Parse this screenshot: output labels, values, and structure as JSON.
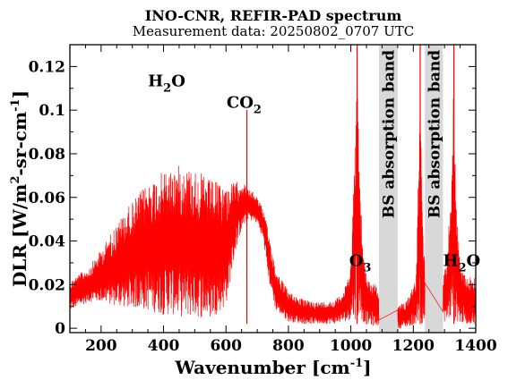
{
  "chart_data": {
    "type": "line",
    "title": "INO-CNR, REFIR-PAD spectrum",
    "subtitle": "Measurement data: 20250802_0707 UTC",
    "xlabel": {
      "base": "Wavenumber [cm",
      "sup": "-1",
      "end": "]"
    },
    "ylabel": {
      "a": "DLR [W/m",
      "sup1": "2",
      "b": "-sr-cm",
      "sup2": "-1",
      "c": "]"
    },
    "xlim": [
      100,
      1400
    ],
    "ylim": [
      -0.002,
      0.13
    ],
    "xticks": [
      200,
      400,
      600,
      800,
      1000,
      1200,
      1400
    ],
    "xtick_labels": [
      "200",
      "400",
      "600",
      "800",
      "1000",
      "1200",
      "1400"
    ],
    "yticks": [
      0,
      0.02,
      0.04,
      0.06,
      0.08,
      0.1,
      0.12
    ],
    "ytick_labels": [
      "0",
      "0.02",
      "0.04",
      "0.06",
      "0.08",
      "0.1",
      "0.12"
    ],
    "grid": false,
    "series_color": "#ff0000",
    "band_color": "#d8d8d8",
    "bands": [
      {
        "x0": 1090,
        "x1": 1150,
        "label": "BS absorption band"
      },
      {
        "x0": 1237,
        "x1": 1295,
        "label": "BS absorption band"
      }
    ],
    "annotations": [
      {
        "base": "H",
        "sub": "2",
        "rest": "O",
        "x": 410,
        "y": 0.111
      },
      {
        "base": "CO",
        "sub": "2",
        "rest": "",
        "x": 658,
        "y": 0.101
      },
      {
        "base": "O",
        "sub": "3",
        "rest": "",
        "x": 1030,
        "y": 0.0285
      },
      {
        "base": "H",
        "sub": "2",
        "rest": "O",
        "x": 1355,
        "y": 0.0285
      }
    ],
    "envelope": {
      "x": [
        100,
        130,
        160,
        200,
        250,
        300,
        350,
        400,
        430,
        460,
        500,
        550,
        600,
        630,
        650,
        670,
        700,
        720,
        740,
        760,
        800,
        850,
        900,
        950,
        980,
        1000,
        1012,
        1020,
        1030,
        1045,
        1060,
        1080,
        1090,
        1150,
        1170,
        1190,
        1210,
        1222,
        1230,
        1237,
        1295,
        1305,
        1320,
        1330,
        1340,
        1350,
        1370,
        1400
      ],
      "upper": [
        0.022,
        0.025,
        0.028,
        0.036,
        0.048,
        0.058,
        0.067,
        0.072,
        0.074,
        0.075,
        0.073,
        0.068,
        0.066,
        0.067,
        0.068,
        0.064,
        0.061,
        0.054,
        0.042,
        0.027,
        0.017,
        0.013,
        0.012,
        0.013,
        0.018,
        0.03,
        0.08,
        0.12,
        0.06,
        0.028,
        0.022,
        0.02,
        0.018,
        0.01,
        0.012,
        0.016,
        0.025,
        0.12,
        0.05,
        0.03,
        0.025,
        0.03,
        0.06,
        0.12,
        0.05,
        0.03,
        0.024,
        0.024
      ],
      "lower": [
        0.008,
        0.01,
        0.012,
        0.012,
        0.01,
        0.009,
        0.008,
        0.006,
        0.006,
        0.005,
        0.005,
        0.004,
        0.01,
        0.035,
        0.045,
        0.05,
        0.048,
        0.04,
        0.02,
        0.008,
        0.003,
        0.002,
        0.002,
        0.002,
        0.003,
        0.004,
        0.004,
        0.004,
        0.004,
        0.002,
        0.001,
        0.001,
        0.001,
        0.0,
        0.0,
        0.001,
        0.002,
        0.002,
        0.002,
        0.002,
        0.003,
        0.003,
        0.003,
        0.003,
        0.003,
        0.002,
        0.002,
        0.002
      ]
    },
    "peaks": [
      {
        "x": 667,
        "y": 0.1
      },
      {
        "x": 1020,
        "y": 0.13
      },
      {
        "x": 1222,
        "y": 0.13
      },
      {
        "x": 1330,
        "y": 0.13
      }
    ]
  }
}
